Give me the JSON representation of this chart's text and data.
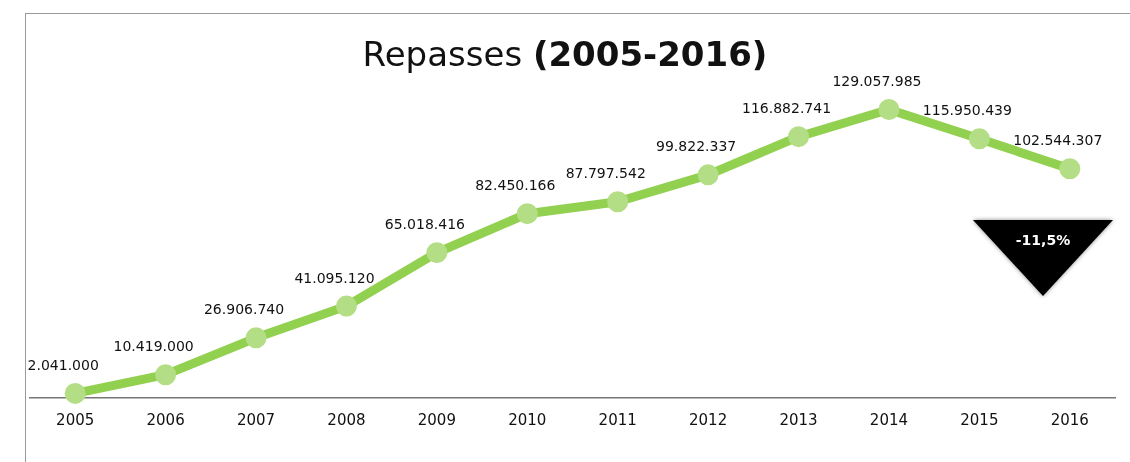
{
  "chart_data": {
    "type": "line",
    "title": "Repasses (2005-2016)",
    "categories": [
      "2005",
      "2006",
      "2007",
      "2008",
      "2009",
      "2010",
      "2011",
      "2012",
      "2013",
      "2014",
      "2015",
      "2016"
    ],
    "series": [
      {
        "color": "#92d050",
        "values": [
          2041000,
          10419000,
          26906740,
          41095120,
          65018416,
          82450166,
          87797542,
          99822337,
          116882741,
          129057985,
          115950439,
          102544307
        ],
        "value_labels": [
          "2.041.000",
          "10.419.000",
          "26.906.740",
          "41.095.120",
          "65.018.416",
          "82.450.166",
          "87.797.542",
          "99.822.337",
          "116.882.741",
          "129.057.985",
          "115.950.439",
          "102.544.307"
        ]
      }
    ],
    "marker": "circle",
    "grid": false,
    "legend": false,
    "tick_labels": "x",
    "annotations": [
      "-11,5%"
    ]
  }
}
